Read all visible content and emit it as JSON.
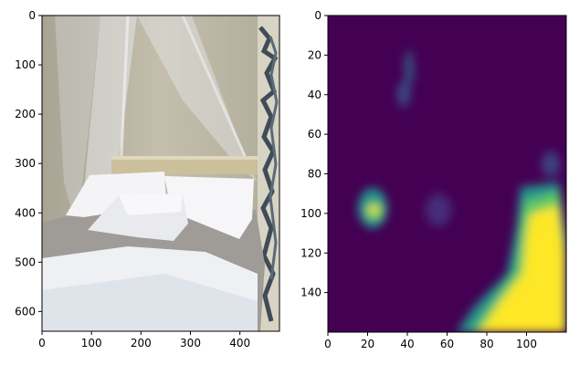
{
  "chart_data": [
    {
      "type": "image",
      "image_subject": "bedroom with canopy bed, white pillows and gray bedspread",
      "x_ticks": [
        0,
        100,
        200,
        300,
        400
      ],
      "y_ticks": [
        0,
        100,
        200,
        300,
        400,
        500,
        600
      ],
      "xlim": [
        0,
        480
      ],
      "ylim": [
        640,
        0
      ],
      "colors": {
        "wall": "#b8b2a0",
        "canopy": "#e6e6ea",
        "bedspread": "#9f9b96",
        "sheet": "#eef0f4",
        "headboard": "#cbbf9c",
        "curtain_dark": "#3f4c58",
        "curtain_light": "#d8d4c4"
      }
    },
    {
      "type": "heatmap",
      "colormap": "viridis",
      "x_ticks": [
        0,
        20,
        40,
        60,
        80,
        100
      ],
      "y_ticks": [
        0,
        20,
        40,
        60,
        80,
        100,
        120,
        140
      ],
      "xlim": [
        0,
        120
      ],
      "ylim": [
        160,
        0
      ],
      "colors": {
        "low": "#440154",
        "mid_low": "#3b528b",
        "mid": "#21918c",
        "mid_high": "#5ec962",
        "high": "#fde725"
      }
    }
  ]
}
